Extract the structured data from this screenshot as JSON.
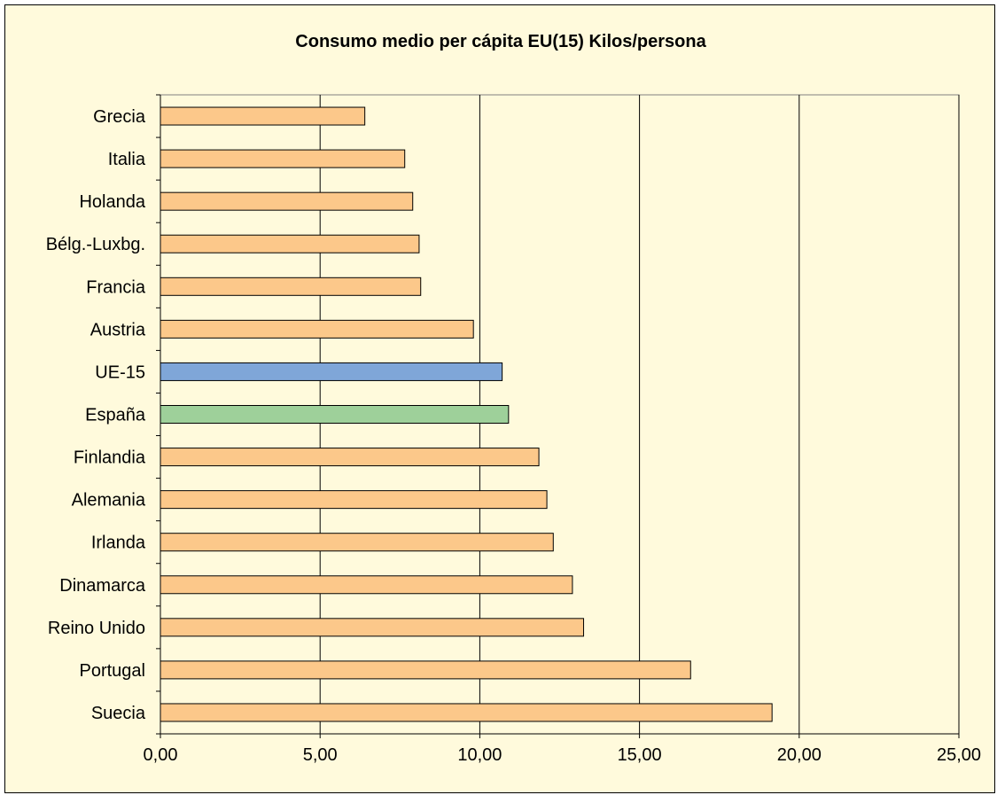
{
  "chart_data": {
    "type": "bar",
    "orientation": "horizontal",
    "title": "Consumo medio per cápita EU(15) Kilos/persona",
    "xlabel": "",
    "ylabel": "",
    "xlim": [
      0,
      25
    ],
    "xticks": [
      0,
      5,
      10,
      15,
      20,
      25
    ],
    "xtick_labels": [
      "0,00",
      "5,00",
      "10,00",
      "15,00",
      "20,00",
      "25,00"
    ],
    "grid": "vertical major gridlines",
    "legend": "none",
    "categories": [
      "Grecia",
      "Italia",
      "Holanda",
      "Bélg.-Luxbg.",
      "Francia",
      "Austria",
      "UE-15",
      "España",
      "Finlandia",
      "Alemania",
      "Irlanda",
      "Dinamarca",
      "Reino Unido",
      "Portugal",
      "Suecia"
    ],
    "values": [
      6.4,
      7.65,
      7.9,
      8.1,
      8.15,
      9.8,
      10.7,
      10.9,
      11.85,
      12.1,
      12.3,
      12.9,
      13.25,
      16.6,
      19.15
    ],
    "colors": [
      "#fcc88a",
      "#fcc88a",
      "#fcc88a",
      "#fcc88a",
      "#fcc88a",
      "#fcc88a",
      "#7fa6d8",
      "#9ed09a",
      "#fcc88a",
      "#fcc88a",
      "#fcc88a",
      "#fcc88a",
      "#fcc88a",
      "#fcc88a",
      "#fcc88a"
    ]
  }
}
